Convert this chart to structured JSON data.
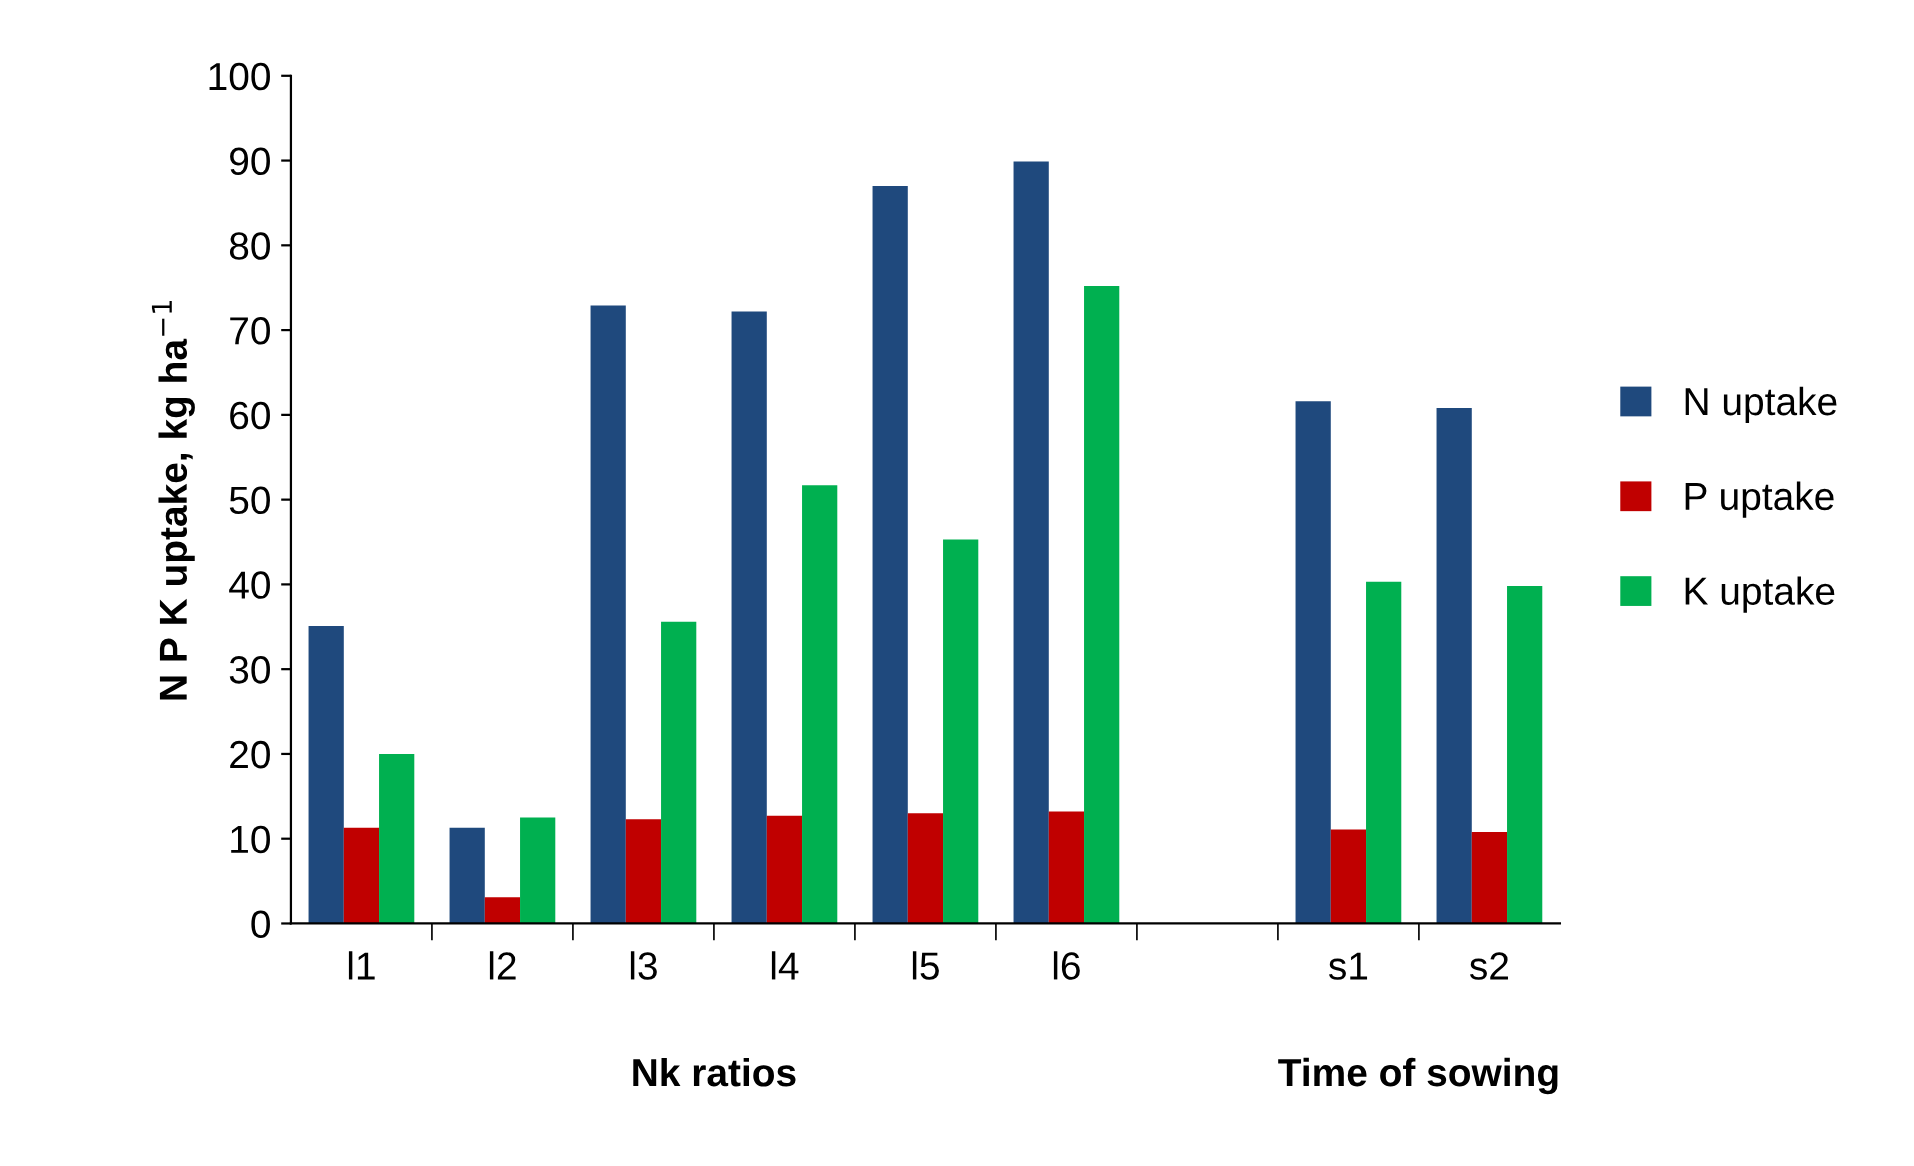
{
  "chart_data": {
    "type": "bar",
    "ylabel": "N P K uptake, kg ha$^{−1}$",
    "categories": [
      "l1",
      "l2",
      "l3",
      "l4",
      "l5",
      "l6",
      null,
      "s1",
      "s2"
    ],
    "series": [
      {
        "name": "N uptake",
        "color": "#1f497d",
        "values": [
          35.1,
          11.3,
          72.9,
          72.2,
          87.0,
          89.9,
          null,
          61.6,
          60.8
        ]
      },
      {
        "name": "P uptake",
        "color": "#c00000",
        "values": [
          11.3,
          3.1,
          12.3,
          12.7,
          13.0,
          13.2,
          null,
          11.1,
          10.8
        ]
      },
      {
        "name": "K uptake",
        "color": "#00b050",
        "values": [
          20.0,
          12.5,
          35.6,
          51.7,
          45.3,
          75.2,
          null,
          40.3,
          39.8
        ]
      }
    ],
    "ylim": [
      0,
      100
    ],
    "yticks": [
      0,
      10,
      20,
      30,
      40,
      50,
      60,
      70,
      80,
      90,
      100
    ],
    "grid": false,
    "legend": "right",
    "annotations": [
      "Nk ratios",
      "Time of sowing"
    ]
  }
}
